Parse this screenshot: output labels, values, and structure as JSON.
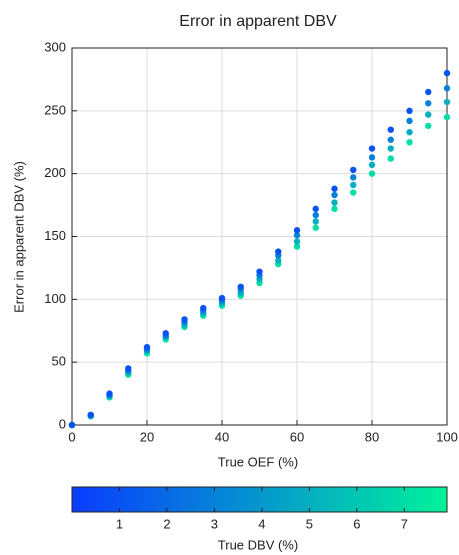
{
  "chart_data": {
    "type": "scatter",
    "title": "Error in apparent DBV",
    "xlabel": "True OEF (%)",
    "ylabel": "Error in apparent DBV (%)",
    "xlim": [
      0,
      100
    ],
    "xticks": [
      0,
      20,
      40,
      60,
      80,
      100
    ],
    "ylim": [
      0,
      300
    ],
    "yticks": [
      0,
      50,
      100,
      150,
      200,
      250,
      300
    ],
    "grid": true,
    "x": [
      0,
      5,
      10,
      15,
      20,
      25,
      30,
      35,
      40,
      45,
      50,
      55,
      60,
      65,
      70,
      75,
      80,
      85,
      90,
      95,
      100
    ],
    "series": [
      {
        "dbv": 7,
        "values": [
          0,
          7,
          22,
          40,
          57,
          68,
          78,
          87,
          95,
          103,
          113,
          128,
          142,
          157,
          172,
          185,
          200,
          212,
          225,
          238,
          245
        ]
      },
      {
        "dbv": 5,
        "values": [
          0,
          7,
          23,
          42,
          59,
          70,
          80,
          89,
          97,
          105,
          116,
          131,
          146,
          162,
          177,
          191,
          207,
          220,
          233,
          247,
          257
        ]
      },
      {
        "dbv": 3,
        "values": [
          0,
          8,
          24,
          43,
          60,
          71,
          82,
          91,
          99,
          108,
          119,
          135,
          151,
          167,
          183,
          197,
          213,
          227,
          242,
          256,
          268
        ]
      },
      {
        "dbv": 1,
        "values": [
          0,
          8,
          25,
          45,
          62,
          73,
          84,
          93,
          101,
          110,
          122,
          138,
          155,
          172,
          188,
          203,
          220,
          235,
          250,
          265,
          280
        ]
      }
    ],
    "colorbar": {
      "label": "True DBV (%)",
      "lim": [
        0,
        7.9
      ],
      "ticks": [
        1,
        2,
        3,
        4,
        5,
        6,
        7
      ],
      "colors": [
        "#0a3cff",
        "#00f29a"
      ]
    }
  }
}
